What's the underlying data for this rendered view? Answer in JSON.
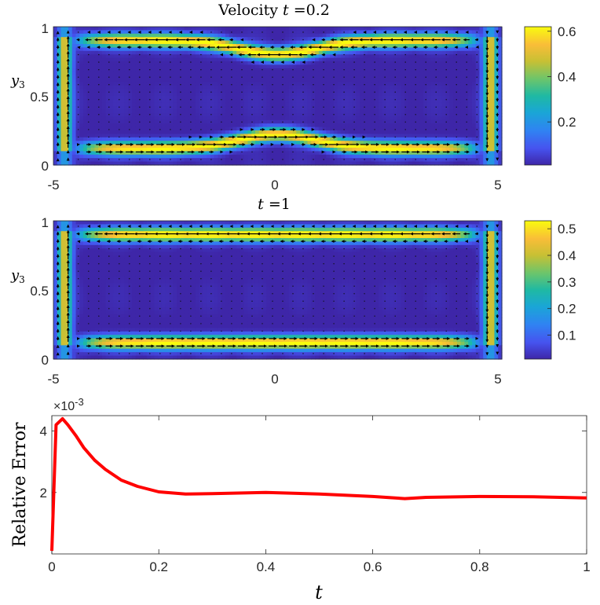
{
  "chart_data": [
    {
      "type": "heatmap",
      "title_prefix": "Velocity",
      "title_var": "t",
      "title_eq": " =0.2",
      "ylabel_var": "y",
      "ylabel_sub": "3",
      "xlim": [
        -5,
        5
      ],
      "ylim": [
        0,
        1
      ],
      "xticks": [
        "-5",
        "0",
        "5"
      ],
      "yticks": [
        "0",
        "0.5",
        "1"
      ],
      "colorbar": {
        "ticks": [
          "0.2",
          "0.4",
          "0.6"
        ],
        "tick_values": [
          0.2,
          0.4,
          0.6
        ],
        "range": [
          0.01,
          0.62
        ]
      },
      "channel_profile": "wavy"
    },
    {
      "type": "heatmap",
      "title_prefix": "",
      "title_var": "t",
      "title_eq": " =1",
      "ylabel_var": "y",
      "ylabel_sub": "3",
      "xlim": [
        -5,
        5
      ],
      "ylim": [
        0,
        1
      ],
      "xticks": [
        "-5",
        "0",
        "5"
      ],
      "yticks": [
        "0",
        "0.5",
        "1"
      ],
      "colorbar": {
        "ticks": [
          "0.1",
          "0.2",
          "0.3",
          "0.4",
          "0.5"
        ],
        "tick_values": [
          0.1,
          0.2,
          0.3,
          0.4,
          0.5
        ],
        "range": [
          0.01,
          0.53
        ]
      },
      "channel_profile": "flat"
    },
    {
      "type": "line",
      "xlabel": "t",
      "ylabel": "Relative Error",
      "exponent_label": "×10",
      "exponent_power": "-3",
      "xlim": [
        0,
        1
      ],
      "ylim": [
        0,
        4.5
      ],
      "xticks": [
        "0",
        "0.2",
        "0.4",
        "0.6",
        "0.8",
        "1"
      ],
      "yticks": [
        "2",
        "4"
      ],
      "color": "#ff0000",
      "series": [
        {
          "x": [
            0,
            0.008,
            0.02,
            0.03,
            0.045,
            0.06,
            0.08,
            0.1,
            0.13,
            0.16,
            0.2,
            0.25,
            0.3,
            0.4,
            0.5,
            0.6,
            0.66,
            0.7,
            0.8,
            0.9,
            1.0
          ],
          "y": [
            0.1,
            4.2,
            4.4,
            4.2,
            3.85,
            3.45,
            3.05,
            2.75,
            2.4,
            2.2,
            2.02,
            1.95,
            1.96,
            2.0,
            1.95,
            1.87,
            1.8,
            1.84,
            1.87,
            1.86,
            1.82
          ]
        }
      ]
    }
  ]
}
